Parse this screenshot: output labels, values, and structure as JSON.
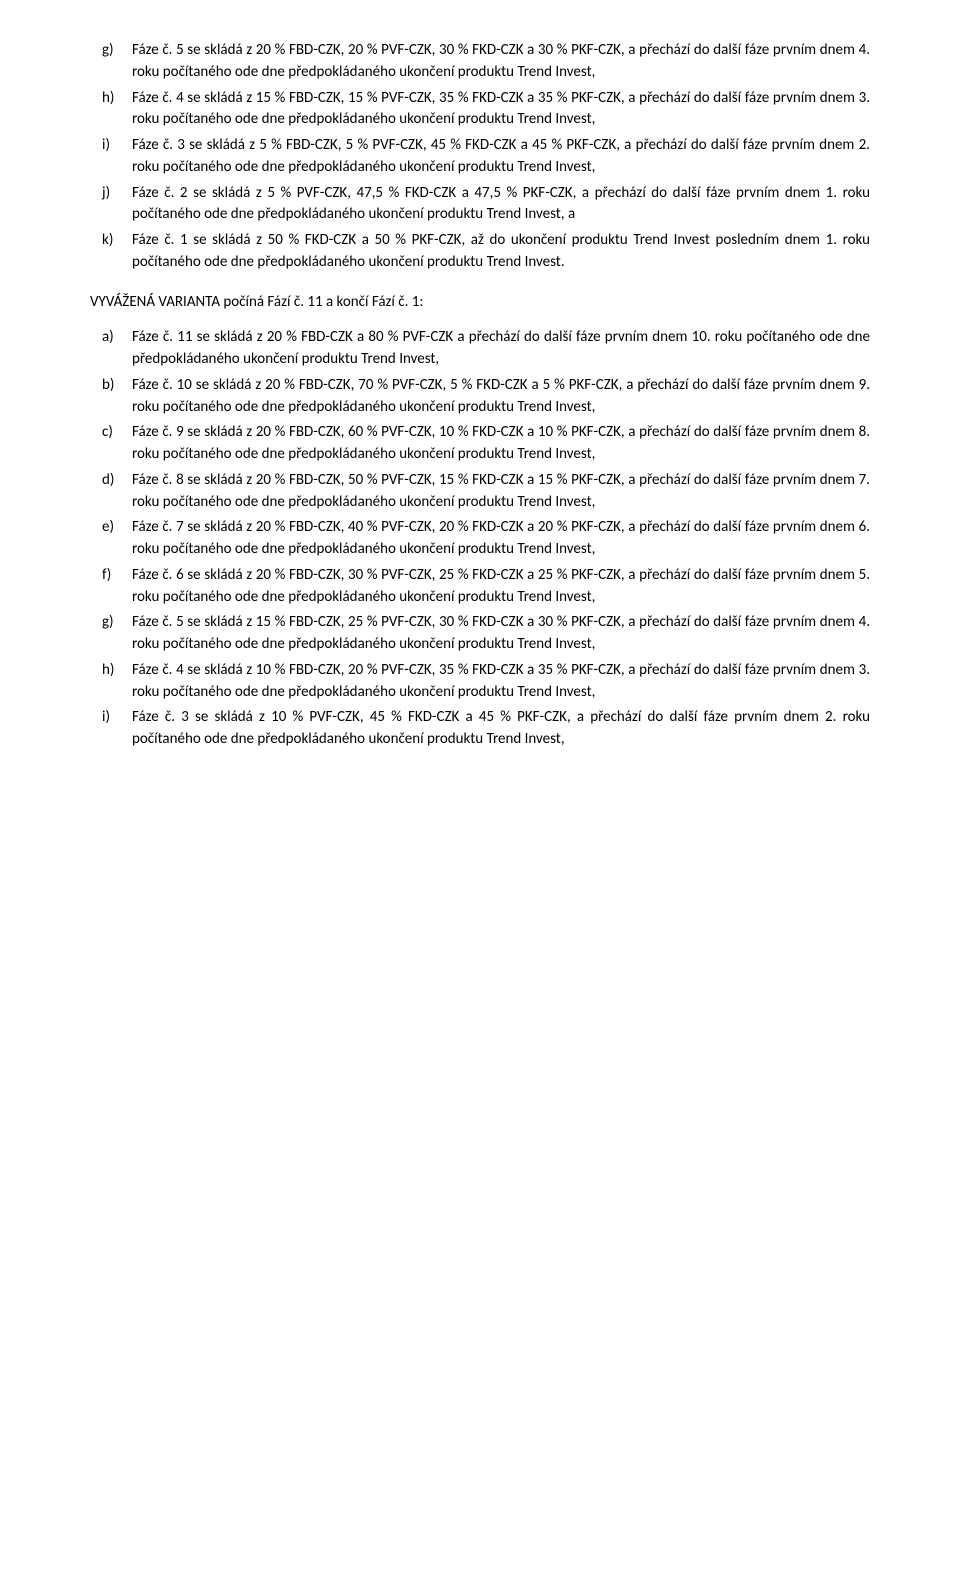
{
  "list1": [
    {
      "marker": "g)",
      "text": "Fáze č. 5 se skládá z 20 % FBD-CZK, 20 % PVF-CZK, 30 % FKD-CZK a 30 % PKF-CZK, a přechází do další fáze prvním dnem 4. roku počítaného ode dne předpokládaného ukončení produktu Trend Invest,"
    },
    {
      "marker": "h)",
      "text": "Fáze č. 4 se skládá z 15 % FBD-CZK, 15 % PVF-CZK, 35 % FKD-CZK a 35 % PKF-CZK, a přechází do další fáze prvním dnem 3. roku počítaného ode dne předpokládaného ukončení produktu Trend Invest,"
    },
    {
      "marker": "i)",
      "text": "Fáze č. 3 se skládá z 5 % FBD-CZK, 5 % PVF-CZK, 45 % FKD-CZK a 45 % PKF-CZK, a přechází do další fáze prvním dnem 2. roku počítaného ode dne předpokládaného ukončení produktu Trend Invest,"
    },
    {
      "marker": "j)",
      "text": "Fáze č. 2 se skládá z 5 % PVF-CZK, 47,5 % FKD-CZK a 47,5 % PKF-CZK, a přechází do další fáze prvním dnem 1. roku počítaného ode dne předpokládaného ukončení produktu Trend Invest, a"
    },
    {
      "marker": "k)",
      "text": "Fáze č. 1 se skládá z 50 % FKD-CZK a 50 % PKF-CZK, až do ukončení produktu Trend Invest posledním dnem 1. roku počítaného ode dne předpokládaného ukončení produktu Trend Invest."
    }
  ],
  "heading": "VYVÁŽENÁ VARIANTA počíná Fází č. 11 a končí Fází č. 1:",
  "list2": [
    {
      "marker": "a)",
      "text": "Fáze č. 11 se skládá z 20 % FBD-CZK a 80 % PVF-CZK a přechází do další fáze prvním dnem 10. roku počítaného ode dne předpokládaného ukončení produktu Trend Invest,"
    },
    {
      "marker": "b)",
      "text": "Fáze č. 10 se skládá z 20 % FBD-CZK, 70 % PVF-CZK, 5 % FKD-CZK a 5 % PKF-CZK, a přechází do další fáze prvním dnem 9. roku počítaného ode dne předpokládaného ukončení produktu Trend Invest,"
    },
    {
      "marker": "c)",
      "text": "Fáze č. 9 se skládá z 20 % FBD-CZK, 60 % PVF-CZK, 10 % FKD-CZK a 10 % PKF-CZK, a přechází do další fáze prvním dnem 8. roku počítaného ode dne předpokládaného ukončení produktu Trend Invest,"
    },
    {
      "marker": "d)",
      "text": "Fáze č. 8 se skládá z 20 % FBD-CZK, 50 % PVF-CZK, 15 % FKD-CZK a 15 % PKF-CZK, a přechází do další fáze prvním dnem 7. roku počítaného ode dne předpokládaného ukončení produktu Trend Invest,"
    },
    {
      "marker": "e)",
      "text": "Fáze č. 7 se skládá z 20 % FBD-CZK, 40 % PVF-CZK, 20 % FKD-CZK a 20 % PKF-CZK, a přechází do další fáze prvním dnem 6. roku počítaného ode dne předpokládaného ukončení produktu Trend Invest,"
    },
    {
      "marker": "f)",
      "text": "Fáze č. 6 se skládá z 20 % FBD-CZK, 30 % PVF-CZK, 25 % FKD-CZK a 25 % PKF-CZK, a přechází do další fáze prvním dnem 5. roku počítaného ode dne předpokládaného ukončení produktu Trend Invest,"
    },
    {
      "marker": "g)",
      "text": "Fáze č. 5 se skládá z 15 % FBD-CZK, 25 % PVF-CZK, 30 % FKD-CZK a 30 % PKF-CZK, a přechází do další fáze prvním dnem 4. roku počítaného ode dne předpokládaného ukončení produktu Trend Invest,"
    },
    {
      "marker": "h)",
      "text": "Fáze č. 4 se skládá z 10 % FBD-CZK, 20 % PVF-CZK, 35 % FKD-CZK a 35 % PKF-CZK, a přechází do další fáze prvním dnem 3. roku počítaného ode dne předpokládaného ukončení produktu Trend Invest,"
    },
    {
      "marker": "i)",
      "text": "Fáze č. 3 se skládá z 10 % PVF-CZK, 45 % FKD-CZK a 45 % PKF-CZK, a přechází do další fáze prvním dnem 2. roku počítaného ode dne předpokládaného ukončení produktu Trend Invest,"
    }
  ]
}
